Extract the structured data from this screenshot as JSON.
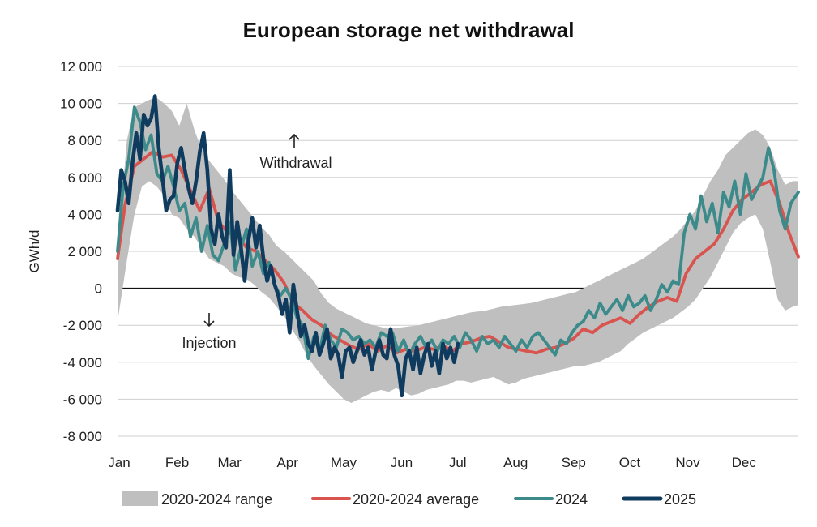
{
  "chart_data": {
    "type": "line",
    "title": "European storage net withdrawal",
    "xlabel": "",
    "ylabel": "GWh/d",
    "ylim": [
      -8000,
      12000
    ],
    "yticks": [
      -8000,
      -6000,
      -4000,
      -2000,
      0,
      2000,
      4000,
      6000,
      8000,
      10000,
      12000
    ],
    "ytick_labels": [
      "-8 000",
      "-6 000",
      "-4 000",
      "-2 000",
      "0",
      "2 000",
      "4 000",
      "6 000",
      "8 000",
      "10 000",
      "12 000"
    ],
    "x_unit": "day of year",
    "xlim": [
      1,
      365
    ],
    "months": [
      {
        "label": "Jan",
        "start_day": 1
      },
      {
        "label": "Feb",
        "start_day": 32
      },
      {
        "label": "Mar",
        "start_day": 60
      },
      {
        "label": "Apr",
        "start_day": 91
      },
      {
        "label": "May",
        "start_day": 121
      },
      {
        "label": "Jun",
        "start_day": 152
      },
      {
        "label": "Jul",
        "start_day": 182
      },
      {
        "label": "Aug",
        "start_day": 213
      },
      {
        "label": "Sep",
        "start_day": 244
      },
      {
        "label": "Oct",
        "start_day": 274
      },
      {
        "label": "Nov",
        "start_day": 305
      },
      {
        "label": "Dec",
        "start_day": 335
      }
    ],
    "grid": true,
    "legend_position": "bottom",
    "annotations": [
      {
        "text": "Withdrawal",
        "arrow": "up"
      },
      {
        "text": "Injection",
        "arrow": "down"
      }
    ],
    "series": [
      {
        "name": "2020-2024 range",
        "kind": "band",
        "color": "#bfbfbf",
        "x": [
          1,
          6,
          10,
          14,
          18,
          22,
          26,
          30,
          34,
          38,
          42,
          46,
          50,
          54,
          58,
          62,
          66,
          70,
          74,
          78,
          82,
          86,
          90,
          94,
          98,
          102,
          106,
          110,
          114,
          118,
          122,
          126,
          130,
          134,
          138,
          142,
          146,
          150,
          154,
          158,
          162,
          166,
          170,
          174,
          178,
          182,
          186,
          190,
          194,
          198,
          202,
          206,
          210,
          214,
          218,
          222,
          226,
          230,
          234,
          238,
          242,
          246,
          250,
          254,
          258,
          262,
          266,
          270,
          274,
          278,
          282,
          286,
          290,
          294,
          298,
          302,
          306,
          310,
          314,
          318,
          322,
          326,
          330,
          334,
          338,
          342,
          346,
          350,
          354,
          358,
          362,
          365
        ],
        "lower": [
          -1800,
          1500,
          4000,
          5500,
          5800,
          5500,
          5000,
          4000,
          3800,
          3200,
          2800,
          2200,
          1600,
          1400,
          1200,
          800,
          600,
          500,
          200,
          -200,
          -500,
          -1000,
          -1500,
          -2200,
          -2800,
          -3600,
          -4200,
          -4700,
          -5200,
          -5600,
          -6000,
          -6200,
          -6000,
          -5800,
          -5600,
          -5500,
          -5600,
          -5400,
          -5600,
          -5800,
          -5700,
          -5500,
          -5400,
          -5300,
          -5200,
          -5000,
          -5000,
          -5100,
          -5000,
          -4900,
          -4800,
          -5000,
          -5200,
          -5100,
          -4900,
          -4800,
          -4700,
          -4600,
          -4500,
          -4400,
          -4300,
          -4200,
          -4200,
          -4100,
          -4000,
          -3800,
          -3600,
          -3400,
          -3000,
          -2700,
          -2400,
          -2200,
          -2000,
          -1800,
          -1600,
          -1300,
          -1000,
          -600,
          0,
          600,
          1400,
          2200,
          3000,
          3500,
          3800,
          4000,
          3200,
          1400,
          -600,
          -1200,
          -1000,
          -900
        ],
        "upper": [
          2000,
          8000,
          9800,
          10000,
          10200,
          10300,
          10000,
          9600,
          8800,
          10000,
          8600,
          7500,
          6900,
          6400,
          5900,
          5300,
          4800,
          4300,
          3800,
          3300,
          2900,
          2300,
          2000,
          1600,
          1200,
          800,
          400,
          -300,
          -800,
          -1100,
          -1300,
          -1500,
          -1700,
          -1900,
          -2000,
          -2100,
          -2200,
          -2150,
          -2100,
          -2050,
          -2000,
          -1900,
          -1800,
          -1700,
          -1600,
          -1500,
          -1400,
          -1300,
          -1250,
          -1200,
          -1100,
          -1000,
          -950,
          -900,
          -850,
          -800,
          -700,
          -600,
          -500,
          -400,
          -300,
          -200,
          0,
          200,
          400,
          600,
          800,
          1000,
          1200,
          1400,
          1600,
          1900,
          2200,
          2500,
          2800,
          3200,
          3700,
          4200,
          5000,
          5800,
          6400,
          7200,
          7600,
          8000,
          8400,
          8600,
          8300,
          7600,
          6400,
          5600,
          5800,
          5800
        ]
      },
      {
        "name": "2020-2024 average",
        "kind": "line",
        "color": "#d9534f",
        "x": [
          1,
          5,
          10,
          15,
          20,
          25,
          30,
          35,
          40,
          45,
          50,
          55,
          60,
          65,
          70,
          75,
          80,
          85,
          90,
          95,
          100,
          105,
          110,
          115,
          120,
          125,
          130,
          135,
          140,
          145,
          150,
          155,
          160,
          165,
          170,
          175,
          180,
          185,
          190,
          195,
          200,
          205,
          210,
          215,
          220,
          225,
          230,
          235,
          240,
          245,
          250,
          255,
          260,
          265,
          270,
          275,
          280,
          285,
          290,
          295,
          300,
          305,
          310,
          315,
          320,
          325,
          330,
          335,
          340,
          345,
          350,
          355,
          360,
          365
        ],
        "values": [
          1600,
          4500,
          6600,
          7000,
          7400,
          7100,
          7200,
          6400,
          5300,
          4200,
          5400,
          3600,
          3000,
          2800,
          2200,
          2000,
          1500,
          1000,
          300,
          -800,
          -1200,
          -1700,
          -2000,
          -2500,
          -2800,
          -3100,
          -3300,
          -3000,
          -3400,
          -3100,
          -3500,
          -3300,
          -3400,
          -3200,
          -3300,
          -3100,
          -3400,
          -3000,
          -2900,
          -2700,
          -2600,
          -2900,
          -3200,
          -3300,
          -3400,
          -3500,
          -3300,
          -3200,
          -3000,
          -2700,
          -2200,
          -2400,
          -2000,
          -1800,
          -1600,
          -1900,
          -1400,
          -1000,
          -700,
          -500,
          -700,
          800,
          1600,
          2000,
          2400,
          3200,
          4200,
          4800,
          5200,
          5600,
          5800,
          4600,
          3000,
          1700
        ]
      },
      {
        "name": "2024",
        "kind": "line",
        "color": "#3c8a8a",
        "x": [
          1,
          4,
          7,
          10,
          13,
          16,
          19,
          22,
          25,
          28,
          31,
          34,
          37,
          40,
          43,
          46,
          49,
          52,
          55,
          58,
          61,
          64,
          67,
          70,
          73,
          76,
          79,
          82,
          85,
          88,
          91,
          94,
          97,
          100,
          103,
          106,
          109,
          112,
          115,
          118,
          121,
          124,
          127,
          130,
          133,
          136,
          139,
          142,
          145,
          148,
          151,
          154,
          157,
          160,
          163,
          166,
          169,
          172,
          175,
          178,
          181,
          184,
          187,
          190,
          193,
          196,
          199,
          202,
          205,
          208,
          211,
          214,
          217,
          220,
          223,
          226,
          229,
          232,
          235,
          238,
          241,
          244,
          247,
          250,
          253,
          256,
          259,
          262,
          265,
          268,
          271,
          274,
          277,
          280,
          283,
          286,
          289,
          292,
          295,
          298,
          301,
          304,
          307,
          310,
          313,
          316,
          319,
          322,
          325,
          328,
          331,
          334,
          337,
          340,
          343,
          346,
          349,
          352,
          355,
          358,
          361,
          365
        ],
        "values": [
          2000,
          5500,
          7000,
          9800,
          9000,
          7500,
          8300,
          6200,
          5800,
          6600,
          5500,
          4200,
          4600,
          2800,
          3800,
          2000,
          3400,
          1800,
          1500,
          2400,
          3600,
          1000,
          2200,
          3200,
          1200,
          2000,
          800,
          1400,
          200,
          -400,
          0,
          -600,
          -1600,
          -2000,
          -3800,
          -2600,
          -3400,
          -2000,
          -2800,
          -3200,
          -2200,
          -2400,
          -2800,
          -2600,
          -3000,
          -2800,
          -3200,
          -2400,
          -2600,
          -2400,
          -3400,
          -2800,
          -3600,
          -3000,
          -2600,
          -3200,
          -2800,
          -3400,
          -2800,
          -3000,
          -2600,
          -3200,
          -2400,
          -2800,
          -3400,
          -2600,
          -3000,
          -2800,
          -3200,
          -2600,
          -3000,
          -3400,
          -2800,
          -3200,
          -2600,
          -2400,
          -2800,
          -3200,
          -3600,
          -2800,
          -3000,
          -2400,
          -2000,
          -1800,
          -1200,
          -1600,
          -800,
          -1400,
          -1000,
          -600,
          -1200,
          -400,
          -1000,
          -800,
          -400,
          -1200,
          -600,
          200,
          -200,
          400,
          200,
          3000,
          4000,
          3200,
          5000,
          3600,
          4600,
          3000,
          5200,
          4400,
          5800,
          4000,
          6200,
          4800,
          5400,
          6000,
          7600,
          6400,
          4200,
          3200,
          4600,
          5200
        ]
      },
      {
        "name": "2025",
        "kind": "line",
        "color": "#0f3b5f",
        "x": [
          1,
          3,
          5,
          7,
          9,
          11,
          13,
          15,
          17,
          19,
          21,
          23,
          25,
          27,
          29,
          31,
          33,
          35,
          37,
          39,
          41,
          43,
          45,
          47,
          49,
          51,
          53,
          55,
          57,
          59,
          61,
          63,
          65,
          67,
          69,
          71,
          73,
          75,
          77,
          79,
          81,
          83,
          85,
          87,
          89,
          91,
          93,
          95,
          97,
          99,
          101,
          103,
          105,
          107,
          109,
          111,
          113,
          115,
          117,
          119,
          121,
          123,
          125,
          127,
          129,
          131,
          133,
          135,
          137,
          139,
          141,
          143,
          145,
          147,
          149,
          151,
          153,
          155,
          157,
          159,
          161,
          163,
          165,
          167,
          169,
          171,
          173,
          175,
          177,
          179,
          181,
          183
        ],
        "values": [
          4200,
          6400,
          5800,
          4600,
          6800,
          8400,
          7000,
          9400,
          8800,
          9200,
          10400,
          7600,
          6000,
          4200,
          4800,
          5000,
          6800,
          7600,
          6400,
          5400,
          4600,
          5800,
          7400,
          8400,
          6400,
          3200,
          2400,
          4000,
          2800,
          2200,
          6400,
          1800,
          3600,
          2200,
          400,
          2600,
          3800,
          2200,
          3400,
          1600,
          400,
          1200,
          200,
          -400,
          -1400,
          -600,
          -2400,
          200,
          -1200,
          -2600,
          -2000,
          -3000,
          -3400,
          -2400,
          -3600,
          -3000,
          -2200,
          -3800,
          -3200,
          -3600,
          -4800,
          -3400,
          -3200,
          -4000,
          -3400,
          -2800,
          -3600,
          -3200,
          -4400,
          -3400,
          -2800,
          -3600,
          -3800,
          -2200,
          -3600,
          -4200,
          -5800,
          -3800,
          -3400,
          -4400,
          -3200,
          -4600,
          -3600,
          -3000,
          -4200,
          -3400,
          -4600,
          -3000,
          -3800,
          -3200,
          -4000,
          -3000
        ]
      }
    ]
  }
}
